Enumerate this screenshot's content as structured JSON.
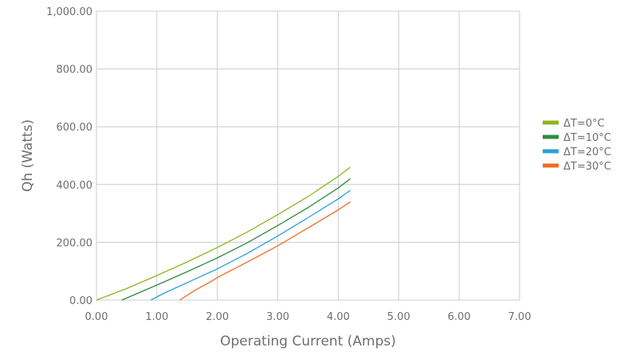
{
  "chart_data": {
    "type": "line",
    "xlabel": "Operating Current (Amps)",
    "ylabel": "Qh (Watts)",
    "xlim": [
      0,
      7
    ],
    "ylim": [
      0,
      1000
    ],
    "x_ticks": [
      "0.00",
      "1.00",
      "2.00",
      "3.00",
      "4.00",
      "5.00",
      "6.00",
      "7.00"
    ],
    "y_ticks": [
      "0.00",
      "200.00",
      "400.00",
      "600.00",
      "800.00",
      "1,000.00"
    ],
    "grid": true,
    "legend_position": "right",
    "series": [
      {
        "name": "ΔT=0°C",
        "color": "#8db51d",
        "x": [
          0.0,
          0.5,
          1.0,
          1.5,
          2.0,
          2.5,
          3.0,
          3.5,
          4.0,
          4.2
        ],
        "y": [
          0,
          40,
          85,
          132,
          182,
          236,
          296,
          358,
          428,
          460
        ]
      },
      {
        "name": "ΔT=10°C",
        "color": "#2e8b3e",
        "x": [
          0.42,
          0.7,
          1.0,
          1.5,
          2.0,
          2.5,
          3.0,
          3.5,
          4.0,
          4.2
        ],
        "y": [
          0,
          25,
          52,
          98,
          146,
          199,
          258,
          320,
          388,
          420
        ]
      },
      {
        "name": "ΔT=20°C",
        "color": "#2a9fd6",
        "x": [
          0.9,
          1.1,
          1.5,
          2.0,
          2.5,
          3.0,
          3.5,
          4.0,
          4.2
        ],
        "y": [
          0,
          22,
          60,
          108,
          162,
          222,
          285,
          350,
          380
        ]
      },
      {
        "name": "ΔT=30°C",
        "color": "#f26b22",
        "x": [
          1.38,
          1.6,
          1.9,
          2.0,
          2.5,
          3.0,
          3.5,
          4.0,
          4.2
        ],
        "y": [
          0,
          30,
          65,
          78,
          132,
          188,
          250,
          312,
          340
        ]
      }
    ]
  }
}
